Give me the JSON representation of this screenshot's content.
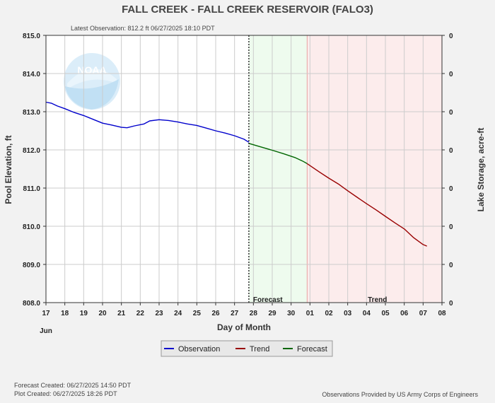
{
  "header": {
    "title": "FALL CREEK - FALL CREEK RESERVOIR  (FALO3)",
    "latest_observation": "Latest Observation:  812.2 ft 06/27/2025 18:10 PDT"
  },
  "footer": {
    "forecast_created": "Forecast Created:  06/27/2025 14:50 PDT",
    "plot_created": "Plot Created:  06/27/2025 18:26 PDT",
    "credit": "Observations Provided by US Army Corps of Engineers"
  },
  "logo": {
    "text": "NOAA"
  },
  "colors": {
    "observation": "#0000cc",
    "trend": "#990000",
    "forecast": "#006600",
    "forecast_zone": "#eefbee",
    "trend_zone": "#fcecec"
  },
  "chart_data": {
    "type": "line",
    "xlabel": "Day of Month",
    "ylabel": "Pool Elevation, ft",
    "y2label": "Lake Storage, acre-ft",
    "x_range": [
      0,
      21
    ],
    "x_ticks": [
      {
        "x": 0,
        "label": "17"
      },
      {
        "x": 1,
        "label": "18"
      },
      {
        "x": 2,
        "label": "19"
      },
      {
        "x": 3,
        "label": "20"
      },
      {
        "x": 4,
        "label": "21"
      },
      {
        "x": 5,
        "label": "22"
      },
      {
        "x": 6,
        "label": "23"
      },
      {
        "x": 7,
        "label": "24"
      },
      {
        "x": 8,
        "label": "25"
      },
      {
        "x": 9,
        "label": "26"
      },
      {
        "x": 10,
        "label": "27"
      },
      {
        "x": 11,
        "label": "28"
      },
      {
        "x": 12,
        "label": "29"
      },
      {
        "x": 13,
        "label": "30"
      },
      {
        "x": 14,
        "label": "01"
      },
      {
        "x": 15,
        "label": "02"
      },
      {
        "x": 16,
        "label": "03"
      },
      {
        "x": 17,
        "label": "04"
      },
      {
        "x": 18,
        "label": "05"
      },
      {
        "x": 19,
        "label": "06"
      },
      {
        "x": 20,
        "label": "07"
      },
      {
        "x": 21,
        "label": "08"
      }
    ],
    "x_month_label": "Jun",
    "ylim": [
      808.0,
      815.0
    ],
    "y_ticks": [
      "808.0",
      "809.0",
      "810.0",
      "811.0",
      "812.0",
      "813.0",
      "814.0",
      "815.0"
    ],
    "y2_ticks": [
      "0",
      "0",
      "0",
      "0",
      "0",
      "0",
      "0",
      "0"
    ],
    "grid": true,
    "observation_time": 10.76,
    "zones": [
      {
        "name": "Forecast",
        "start": 10.76,
        "end": 13.85
      },
      {
        "name": "Trend",
        "start": 13.85,
        "end": 21.0
      }
    ],
    "series": [
      {
        "name": "Observation",
        "points": [
          [
            0.0,
            813.25
          ],
          [
            0.3,
            813.22
          ],
          [
            0.6,
            813.15
          ],
          [
            1.0,
            813.08
          ],
          [
            1.5,
            812.98
          ],
          [
            2.0,
            812.9
          ],
          [
            2.5,
            812.8
          ],
          [
            3.0,
            812.7
          ],
          [
            3.5,
            812.65
          ],
          [
            4.0,
            812.59
          ],
          [
            4.3,
            812.58
          ],
          [
            4.7,
            812.63
          ],
          [
            5.2,
            812.68
          ],
          [
            5.5,
            812.76
          ],
          [
            6.0,
            812.79
          ],
          [
            6.5,
            812.77
          ],
          [
            7.0,
            812.73
          ],
          [
            7.5,
            812.68
          ],
          [
            8.0,
            812.64
          ],
          [
            8.5,
            812.57
          ],
          [
            9.0,
            812.5
          ],
          [
            9.5,
            812.44
          ],
          [
            10.0,
            812.37
          ],
          [
            10.5,
            812.28
          ],
          [
            10.76,
            812.2
          ]
        ]
      },
      {
        "name": "Forecast",
        "points": [
          [
            10.76,
            812.17
          ],
          [
            11.3,
            812.09
          ],
          [
            12.0,
            811.99
          ],
          [
            12.6,
            811.9
          ],
          [
            13.2,
            811.8
          ],
          [
            13.6,
            811.71
          ],
          [
            13.85,
            811.64
          ]
        ]
      },
      {
        "name": "Trend",
        "points": [
          [
            13.85,
            811.64
          ],
          [
            14.5,
            811.42
          ],
          [
            15.0,
            811.26
          ],
          [
            15.5,
            811.11
          ],
          [
            16.0,
            810.93
          ],
          [
            16.5,
            810.76
          ],
          [
            17.0,
            810.59
          ],
          [
            17.5,
            810.43
          ],
          [
            18.0,
            810.26
          ],
          [
            18.5,
            810.09
          ],
          [
            19.0,
            809.93
          ],
          [
            19.5,
            809.7
          ],
          [
            20.0,
            809.52
          ],
          [
            20.2,
            809.48
          ]
        ]
      }
    ],
    "legend": [
      "Observation",
      "Trend",
      "Forecast"
    ],
    "legend_position": "bottom-center"
  }
}
